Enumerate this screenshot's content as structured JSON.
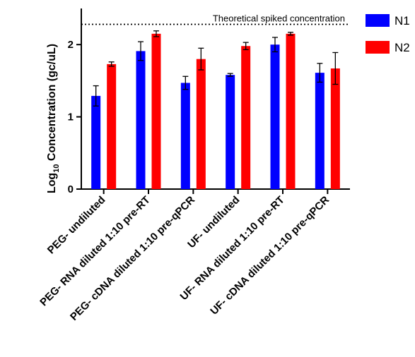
{
  "chart_data": {
    "type": "bar",
    "ylabel": {
      "prefix": "Log",
      "subscript": "10",
      "suffix": " Concentration (gc/uL)"
    },
    "ylim": [
      0,
      2.5
    ],
    "yticks": [
      0,
      1,
      2
    ],
    "categories": [
      "PEG- undiluted",
      "PEG- RNA diluted 1:10 pre-RT",
      "PEG- cDNA diluted 1:10 pre-qPCR",
      "UF- undiluted",
      "UF- RNA diluted 1:10 pre-RT",
      "UF- cDNA diluted 1:10 pre-qPCR"
    ],
    "series": [
      {
        "name": "N1",
        "color": "#0000ff",
        "values": [
          1.29,
          1.91,
          1.47,
          1.58,
          2.0,
          1.61
        ],
        "errors": [
          0.14,
          0.13,
          0.09,
          0.02,
          0.1,
          0.13
        ]
      },
      {
        "name": "N2",
        "color": "#ff0000",
        "values": [
          1.73,
          2.15,
          1.8,
          1.98,
          2.15,
          1.67
        ],
        "errors": [
          0.03,
          0.04,
          0.15,
          0.05,
          0.02,
          0.22
        ]
      }
    ],
    "reference_line": {
      "label": "Theoretical spiked concentration",
      "value": 2.28,
      "style": "dotted"
    },
    "legend_position": "top-right",
    "grid": false
  }
}
